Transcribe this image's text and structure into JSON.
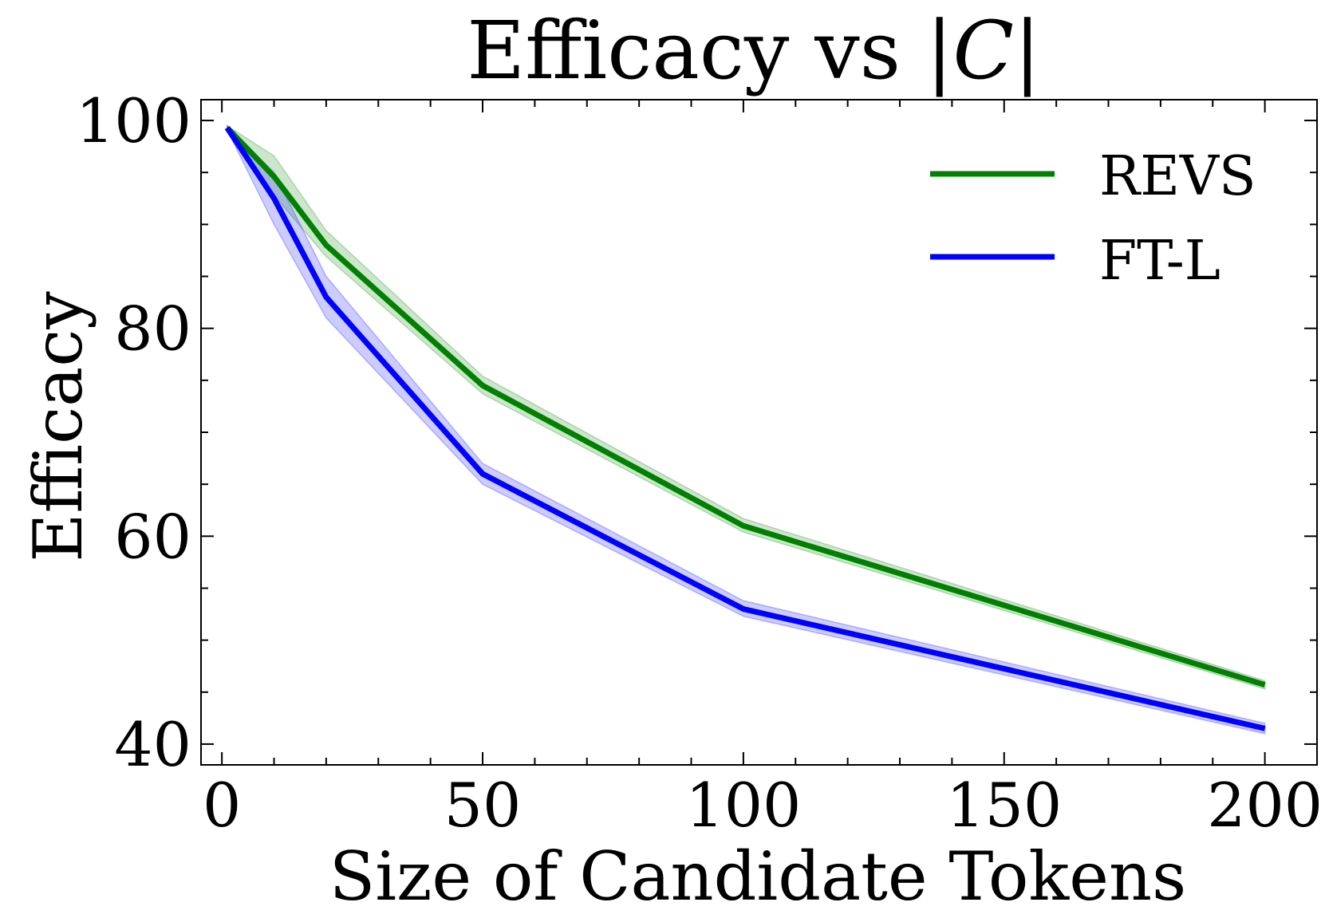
{
  "chart_data": {
    "type": "line",
    "title": "Efficacy vs |C|",
    "title_parts": {
      "prefix": "Efficacy vs ",
      "bar_left": "|",
      "var": "C",
      "bar_right": "|"
    },
    "xlabel": "Size of Candidate Tokens",
    "ylabel": "Efficacy",
    "xlim": [
      -4,
      210
    ],
    "ylim": [
      38,
      102
    ],
    "xticks": [
      0,
      50,
      100,
      150,
      200
    ],
    "xtick_labels": [
      "0",
      "50",
      "100",
      "150",
      "200"
    ],
    "yticks": [
      40,
      60,
      80,
      100
    ],
    "ytick_labels": [
      "40",
      "60",
      "80",
      "100"
    ],
    "x_minor_ticks": [
      10,
      20,
      30,
      40,
      60,
      70,
      80,
      90,
      110,
      120,
      130,
      140,
      160,
      170,
      180,
      190
    ],
    "y_minor_ticks": [
      45,
      50,
      55,
      65,
      70,
      75,
      85,
      90,
      95
    ],
    "grid": false,
    "legend_position": "top-right",
    "series": [
      {
        "name": "REVS",
        "color": "#008000",
        "band_color": "#008000",
        "x": [
          1,
          10,
          20,
          50,
          100,
          200
        ],
        "values": [
          99.3,
          94.6,
          88.0,
          74.5,
          61.0,
          45.7
        ],
        "lower": [
          99.1,
          92.8,
          86.9,
          73.7,
          60.4,
          45.3
        ],
        "upper": [
          99.5,
          96.6,
          89.4,
          75.4,
          61.7,
          46.1
        ]
      },
      {
        "name": "FT-L",
        "color": "#0000ff",
        "band_color": "#0000ff",
        "x": [
          1,
          10,
          20,
          50,
          100,
          200
        ],
        "values": [
          99.3,
          92.5,
          83.0,
          66.0,
          53.0,
          41.5
        ],
        "lower": [
          99.1,
          90.0,
          81.0,
          65.0,
          52.3,
          41.0
        ],
        "upper": [
          99.5,
          95.0,
          85.0,
          67.0,
          53.8,
          42.0
        ]
      }
    ]
  }
}
